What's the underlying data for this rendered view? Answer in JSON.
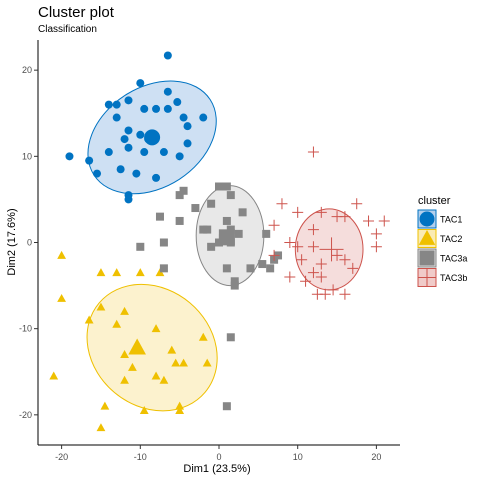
{
  "chart_data": {
    "type": "scatter",
    "title": "Cluster plot",
    "subtitle": "Classification",
    "xlabel": "Dim1 (23.5%)",
    "ylabel": "Dim2 (17.6%)",
    "xlim": [
      -23,
      23
    ],
    "ylim": [
      -23.5,
      23.5
    ],
    "xticks": [
      -20,
      -10,
      0,
      10,
      20
    ],
    "yticks": [
      -20,
      -10,
      0,
      10,
      20
    ],
    "grid": false,
    "legend": {
      "title": "cluster",
      "placement": "right"
    },
    "series": [
      {
        "name": "TAC1",
        "shape": "circle",
        "color": "#0073C2",
        "fill": "#B3CFEC",
        "centroid": [
          -8.5,
          12.2
        ],
        "ellipse": {
          "cx": -8.5,
          "cy": 12.2,
          "rx": 8.8,
          "ry": 5.8,
          "angle": 33
        },
        "points": [
          [
            -6.5,
            21.7
          ],
          [
            -10,
            18.5
          ],
          [
            -6.5,
            17.5
          ],
          [
            -5.3,
            16.3
          ],
          [
            -14,
            16
          ],
          [
            -11.5,
            16.5
          ],
          [
            -13,
            16
          ],
          [
            -9.5,
            15.5
          ],
          [
            -8,
            15.5
          ],
          [
            -6.5,
            15.5
          ],
          [
            -13,
            14.5
          ],
          [
            -4.5,
            14.5
          ],
          [
            -2,
            14.5
          ],
          [
            -11.5,
            13
          ],
          [
            -10,
            12.5
          ],
          [
            -9,
            12
          ],
          [
            -12,
            12
          ],
          [
            -4,
            13.5
          ],
          [
            -4,
            11.5
          ],
          [
            -11.5,
            11
          ],
          [
            -9.5,
            10.5
          ],
          [
            -7,
            10.5
          ],
          [
            -14,
            10.5
          ],
          [
            -5,
            10
          ],
          [
            -19,
            10
          ],
          [
            -16.5,
            9.5
          ],
          [
            -12.5,
            8.5
          ],
          [
            -10.5,
            8
          ],
          [
            -15.5,
            8
          ],
          [
            -8,
            7.5
          ],
          [
            -11.5,
            5.5
          ],
          [
            -11.5,
            5
          ]
        ]
      },
      {
        "name": "TAC2",
        "shape": "triangle",
        "color": "#EFC000",
        "fill": "#FAEBB3",
        "centroid": [
          -10.4,
          -12.2
        ],
        "ellipse": {
          "cx": -8.5,
          "cy": -12.2,
          "rx": 8.8,
          "ry": 6.8,
          "angle": -40
        },
        "points": [
          [
            -20,
            -1.5
          ],
          [
            -15,
            -3.5
          ],
          [
            -13,
            -3.5
          ],
          [
            -10,
            -3.5
          ],
          [
            -7.5,
            -3.5
          ],
          [
            -20,
            -6.5
          ],
          [
            -15,
            -7.5
          ],
          [
            -16.5,
            -9
          ],
          [
            -12,
            -8
          ],
          [
            -13,
            -9.5
          ],
          [
            -8,
            -10
          ],
          [
            -12,
            -13
          ],
          [
            -6,
            -12.5
          ],
          [
            -2,
            -11
          ],
          [
            -5.5,
            -14
          ],
          [
            -4.5,
            -14
          ],
          [
            -1.5,
            -14
          ],
          [
            -11,
            -14.5
          ],
          [
            -8,
            -15.5
          ],
          [
            -21,
            -15.5
          ],
          [
            -12,
            -16
          ],
          [
            -7,
            -16
          ],
          [
            -14.5,
            -19
          ],
          [
            -9.5,
            -19.5
          ],
          [
            -5,
            -19
          ],
          [
            -5,
            -19.5
          ],
          [
            -15,
            -21.5
          ]
        ]
      },
      {
        "name": "TAC3a",
        "shape": "square",
        "color": "#868686",
        "fill": "#DBDBDB",
        "centroid": [
          1.0,
          0.6
        ],
        "ellipse": {
          "cx": 1.4,
          "cy": 0.8,
          "rx": 4.3,
          "ry": 5.8,
          "angle": 0
        },
        "points": [
          [
            0,
            6.5
          ],
          [
            -4.5,
            6
          ],
          [
            -5,
            5.5
          ],
          [
            1,
            6.5
          ],
          [
            1.5,
            5.5
          ],
          [
            -1,
            4.5
          ],
          [
            -3,
            4
          ],
          [
            3,
            3.5
          ],
          [
            -7.5,
            3
          ],
          [
            -5,
            2.5
          ],
          [
            1,
            2.5
          ],
          [
            -2,
            1.5
          ],
          [
            -1.5,
            1.5
          ],
          [
            1.5,
            1.5
          ],
          [
            2.5,
            1
          ],
          [
            0.5,
            0.5
          ],
          [
            1,
            0.5
          ],
          [
            6,
            1
          ],
          [
            -7,
            0
          ],
          [
            0,
            0
          ],
          [
            1.5,
            0
          ],
          [
            -10,
            -0.5
          ],
          [
            -1,
            -0.5
          ],
          [
            -7,
            -3
          ],
          [
            1,
            -3
          ],
          [
            2,
            -4.5
          ],
          [
            4,
            -3
          ],
          [
            2,
            -5
          ],
          [
            6.5,
            -3
          ],
          [
            5.5,
            -2.5
          ],
          [
            7,
            -2
          ],
          [
            7.5,
            -1.5
          ],
          [
            1.5,
            -11
          ],
          [
            1,
            -19
          ]
        ]
      },
      {
        "name": "TAC3b",
        "shape": "cross",
        "color": "#CD534C",
        "fill": "#F0CBC9",
        "centroid": [
          14.3,
          -0.8
        ],
        "ellipse": {
          "cx": 14.0,
          "cy": -0.8,
          "rx": 4.3,
          "ry": 4.7,
          "angle": 0
        },
        "points": [
          [
            12,
            10.5
          ],
          [
            17.5,
            4.5
          ],
          [
            8,
            4.5
          ],
          [
            10,
            3.5
          ],
          [
            13,
            3.5
          ],
          [
            15,
            3
          ],
          [
            16,
            3
          ],
          [
            19,
            2.5
          ],
          [
            21,
            2.5
          ],
          [
            7,
            2
          ],
          [
            12,
            1.5
          ],
          [
            20,
            1
          ],
          [
            9,
            0
          ],
          [
            10,
            -0.5
          ],
          [
            12,
            -0.5
          ],
          [
            15,
            -1.5
          ],
          [
            16,
            -2
          ],
          [
            20,
            -0.5
          ],
          [
            7,
            -1.5
          ],
          [
            13,
            -2.5
          ],
          [
            10.5,
            -2
          ],
          [
            17,
            -3
          ],
          [
            12,
            -3.5
          ],
          [
            9,
            -4
          ],
          [
            13,
            -4
          ],
          [
            11,
            -4.5
          ],
          [
            14.5,
            -5.5
          ],
          [
            12.5,
            -6
          ],
          [
            16,
            -6
          ],
          [
            13.5,
            -6
          ]
        ]
      }
    ]
  }
}
